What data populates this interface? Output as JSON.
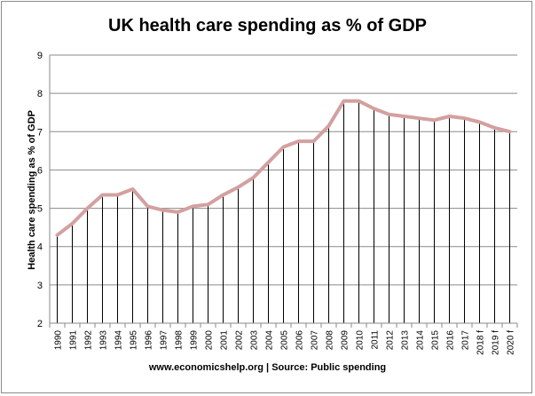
{
  "chart_data": {
    "type": "line",
    "title": "UK health care spending as % of GDP",
    "xlabel": "",
    "ylabel": "Health care spending as % of GDP",
    "footer": "www.economicshelp.org | Source: Public spending",
    "ylim": [
      2,
      9
    ],
    "yticks": [
      2,
      3,
      4,
      5,
      6,
      7,
      8,
      9
    ],
    "grid": true,
    "legend": "none",
    "drop_lines": true,
    "line_color": "#d4a0a0",
    "categories": [
      "1990",
      "1991",
      "1992",
      "1993",
      "1994",
      "1995",
      "1996",
      "1997",
      "1998",
      "1999",
      "2000",
      "2001",
      "2002",
      "2003",
      "2004",
      "2005",
      "2006",
      "2007",
      "2008",
      "2009",
      "2010",
      "2011",
      "2012",
      "2013",
      "2014",
      "2015",
      "2016",
      "2017",
      "2018 f",
      "2019 f",
      "2020 f"
    ],
    "series": [
      {
        "values": [
          4.3,
          4.6,
          5.0,
          5.35,
          5.35,
          5.5,
          5.05,
          4.95,
          4.9,
          5.05,
          5.1,
          5.35,
          5.55,
          5.8,
          6.2,
          6.6,
          6.75,
          6.75,
          7.15,
          7.8,
          7.8,
          7.6,
          7.45,
          7.4,
          7.35,
          7.3,
          7.4,
          7.35,
          7.25,
          7.1,
          7.0
        ]
      }
    ]
  }
}
